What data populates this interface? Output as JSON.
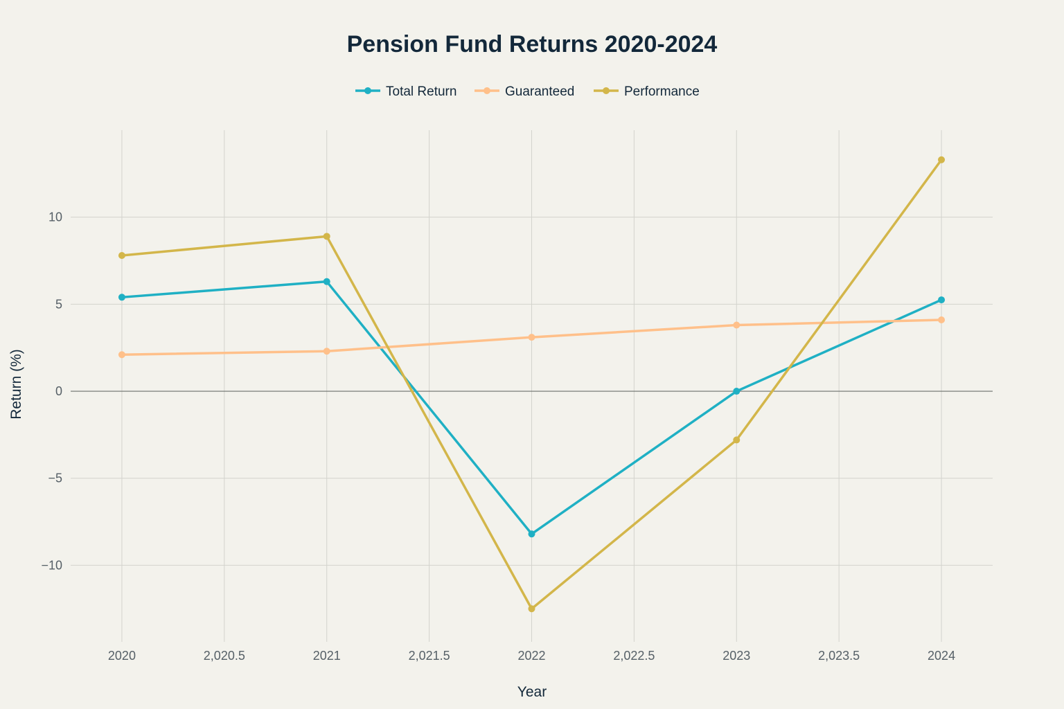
{
  "chart_data": {
    "type": "line",
    "title": "Pension Fund Returns 2020-2024",
    "xlabel": "Year",
    "ylabel": "Return (%)",
    "x": [
      2020,
      2021,
      2022,
      2023,
      2024
    ],
    "xlim": [
      2019.75,
      2024.25
    ],
    "ylim": [
      -14.4,
      15
    ],
    "x_ticks": [
      2020,
      2020.5,
      2021,
      2021.5,
      2022,
      2022.5,
      2023,
      2023.5,
      2024
    ],
    "x_tick_labels": [
      "2020",
      "2,020.5",
      "2021",
      "2,021.5",
      "2022",
      "2,022.5",
      "2023",
      "2,023.5",
      "2024"
    ],
    "y_ticks": [
      -10,
      -5,
      0,
      5,
      10
    ],
    "y_tick_labels": [
      "−10",
      "−5",
      "0",
      "5",
      "10"
    ],
    "grid": true,
    "legend_position": "top-center",
    "series": [
      {
        "name": "Total Return",
        "color": "#1fb0c4",
        "values": [
          5.4,
          6.3,
          -8.2,
          0.0,
          5.25
        ]
      },
      {
        "name": "Guaranteed",
        "color": "#ffc08a",
        "values": [
          2.1,
          2.3,
          3.1,
          3.8,
          4.1
        ]
      },
      {
        "name": "Performance",
        "color": "#d3b64a",
        "values": [
          7.8,
          8.9,
          -12.5,
          -2.8,
          13.3
        ]
      }
    ]
  }
}
